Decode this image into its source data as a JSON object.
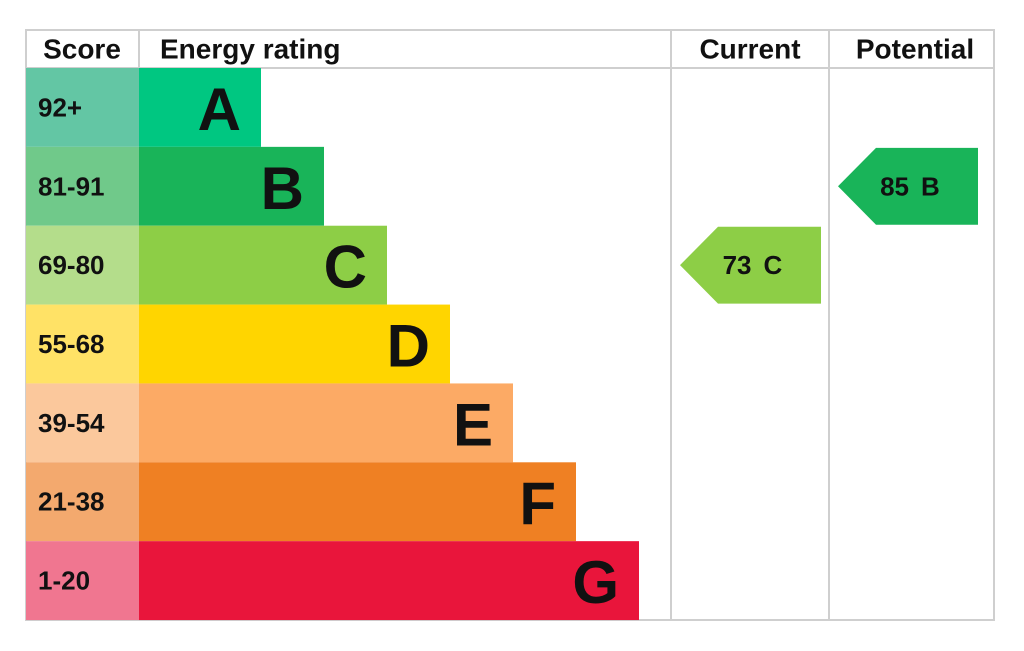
{
  "header": {
    "score": "Score",
    "energy_rating": "Energy rating",
    "current": "Current",
    "potential": "Potential"
  },
  "rows": [
    {
      "score": "92+",
      "rating": "A",
      "color": "#00c781",
      "score_color": "#63c6a4"
    },
    {
      "score": "81-91",
      "rating": "B",
      "color": "#19b459",
      "score_color": "#70c98a"
    },
    {
      "score": "69-80",
      "rating": "C",
      "color": "#8dce46",
      "score_color": "#b4dd8b"
    },
    {
      "score": "55-68",
      "rating": "D",
      "color": "#ffd500",
      "score_color": "#ffe266"
    },
    {
      "score": "39-54",
      "rating": "E",
      "color": "#fcaa65",
      "score_color": "#fbc89c"
    },
    {
      "score": "21-38",
      "rating": "F",
      "color": "#ef8023",
      "score_color": "#f3a96e"
    },
    {
      "score": "1-20",
      "rating": "G",
      "color": "#e9153b",
      "score_color": "#f07690"
    }
  ],
  "current": {
    "value": 73,
    "rating": "C"
  },
  "potential": {
    "value": 85,
    "rating": "B"
  }
}
